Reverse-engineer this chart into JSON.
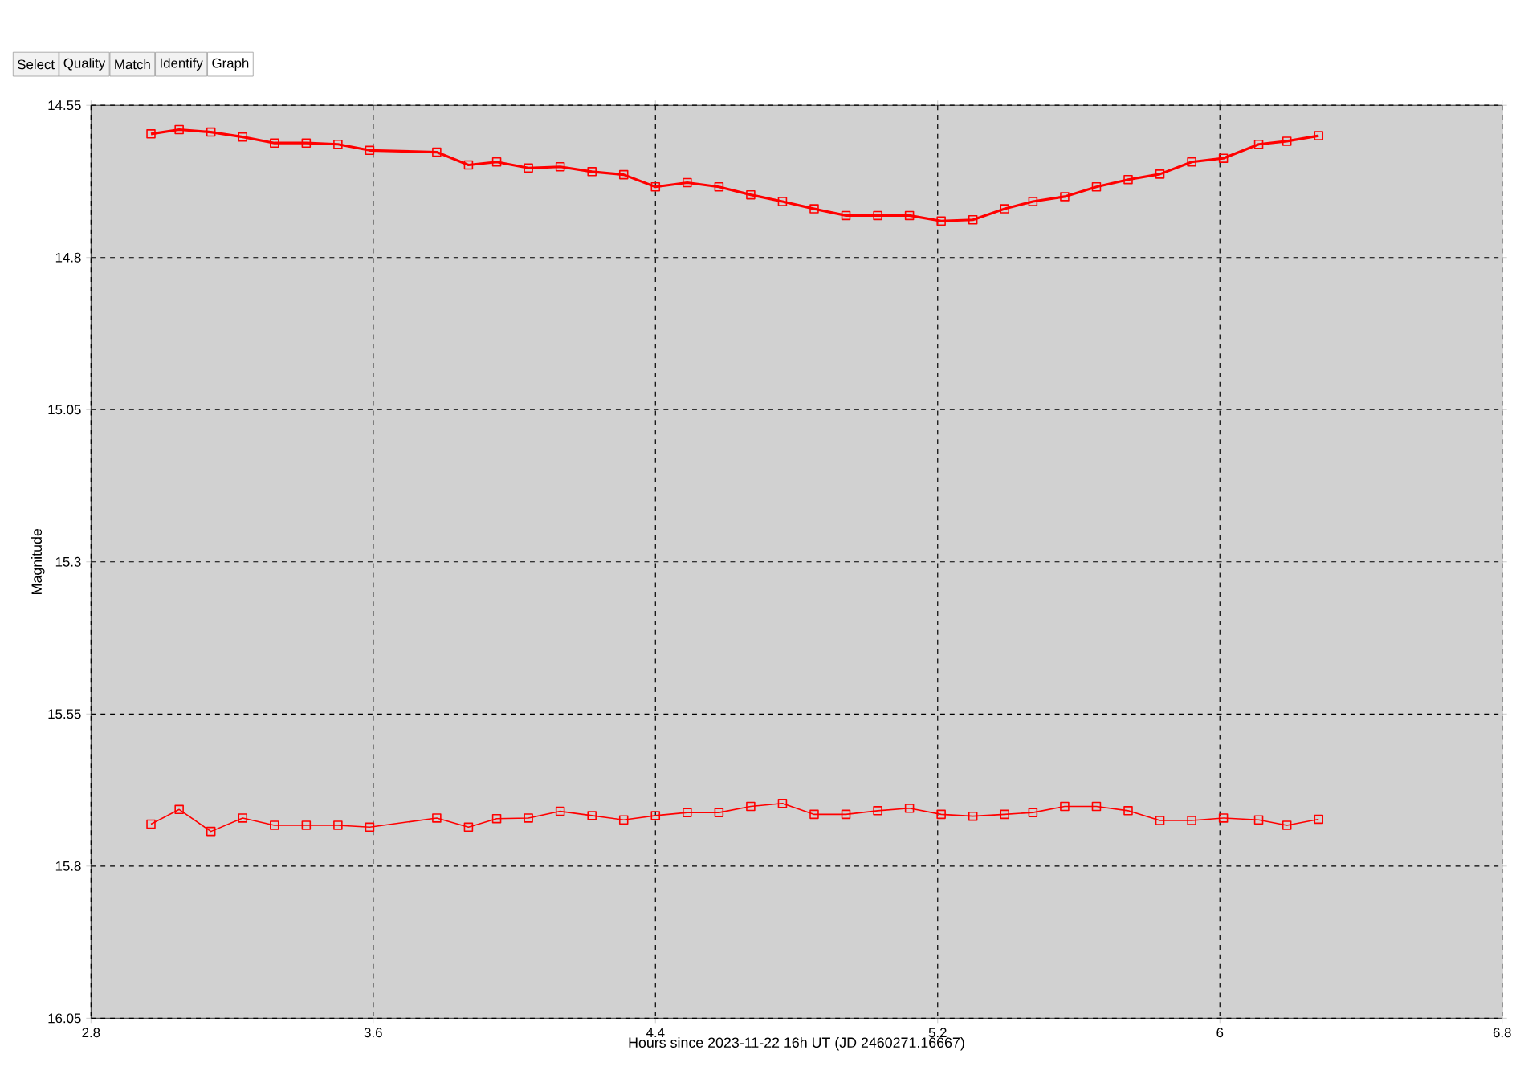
{
  "chart_data": {
    "type": "line",
    "xlabel": "Hours since 2023-11-22 16h UT (JD 2460271.16667)",
    "ylabel": "Magnitude",
    "annotations": [
      "Select",
      "Quality",
      "Match",
      "Identify",
      "Graph"
    ],
    "x": [
      2.97,
      3.05,
      3.14,
      3.23,
      3.32,
      3.41,
      3.5,
      3.59,
      3.78,
      3.87,
      3.95,
      4.04,
      4.13,
      4.22,
      4.31,
      4.4,
      4.49,
      4.58,
      4.67,
      4.76,
      4.85,
      4.94,
      5.03,
      5.12,
      5.21,
      5.3,
      5.39,
      5.47,
      5.56,
      5.65,
      5.74,
      5.83,
      5.92,
      6.01,
      6.11,
      6.19,
      6.28
    ],
    "series": [
      {
        "color": "#ff0000",
        "values": [
          14.597,
          14.59,
          14.594,
          14.602,
          14.612,
          14.612,
          14.614,
          14.624,
          14.627,
          14.648,
          14.643,
          14.653,
          14.651,
          14.659,
          14.664,
          14.684,
          14.677,
          14.684,
          14.697,
          14.708,
          14.72,
          14.731,
          14.731,
          14.731,
          14.74,
          14.738,
          14.72,
          14.708,
          14.7,
          14.684,
          14.672,
          14.663,
          14.643,
          14.637,
          14.614,
          14.609,
          14.6
        ]
      },
      {
        "color": "#ff0000",
        "values": [
          15.731,
          15.707,
          15.743,
          15.721,
          15.733,
          15.733,
          15.733,
          15.736,
          15.721,
          15.736,
          15.722,
          15.721,
          15.71,
          15.717,
          15.724,
          15.717,
          15.712,
          15.712,
          15.702,
          15.697,
          15.715,
          15.715,
          15.709,
          15.705,
          15.715,
          15.718,
          15.715,
          15.712,
          15.702,
          15.702,
          15.709,
          15.725,
          15.725,
          15.721,
          15.724,
          15.733,
          15.723
        ]
      }
    ],
    "xlim": [
      2.8,
      6.8
    ],
    "xticks": [
      2.8,
      3.6,
      4.4,
      5.2,
      6,
      6.8
    ],
    "ylim": [
      16.05,
      14.55
    ],
    "yticks": [
      14.55,
      14.8,
      15.05,
      15.3,
      15.55,
      15.8,
      16.05
    ],
    "grid": true,
    "marker": "square",
    "line_style": "solid"
  }
}
